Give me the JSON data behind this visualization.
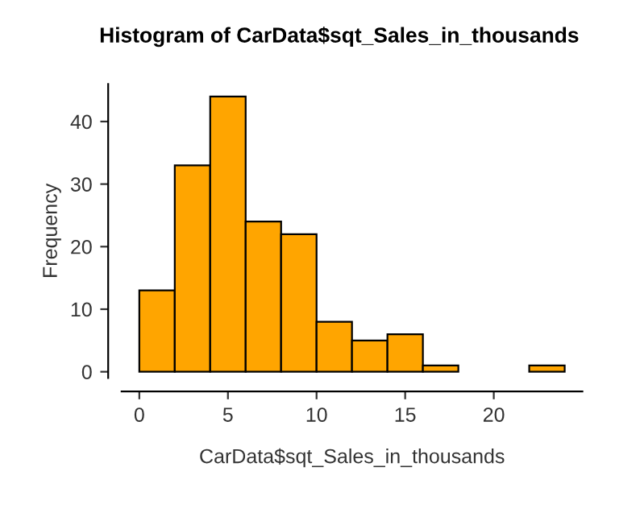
{
  "chart_data": {
    "type": "histogram",
    "title": "Histogram of CarData$sqt_Sales_in_thousands",
    "xlabel": "CarData$sqt_Sales_in_thousands",
    "ylabel": "Frequency",
    "bins": [
      0,
      2,
      4,
      6,
      8,
      10,
      12,
      14,
      16,
      18,
      20,
      22,
      24
    ],
    "values": [
      13,
      33,
      44,
      24,
      22,
      8,
      5,
      6,
      1,
      0,
      0,
      1
    ],
    "color": "#ffa500",
    "xlim": [
      -1,
      25
    ],
    "ylim": [
      -1,
      46
    ],
    "xticks": [
      0,
      5,
      10,
      15,
      20
    ],
    "yticks": [
      0,
      10,
      20,
      30,
      40
    ],
    "grid": false
  }
}
